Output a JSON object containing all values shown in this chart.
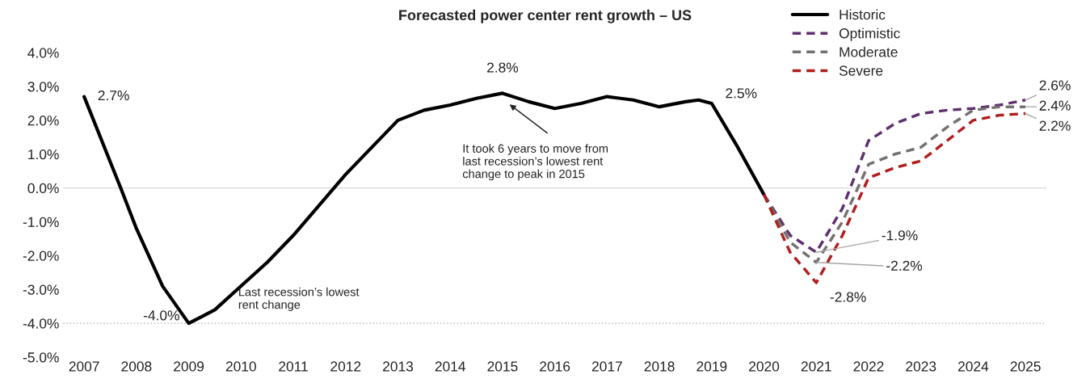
{
  "chart_data": {
    "type": "line",
    "title": "Forecasted power center rent growth – US",
    "xlim": [
      2006.6,
      2025.4
    ],
    "xticks": [
      2007,
      2008,
      2009,
      2010,
      2011,
      2012,
      2013,
      2014,
      2015,
      2016,
      2017,
      2018,
      2019,
      2020,
      2021,
      2022,
      2023,
      2024,
      2025
    ],
    "ylim": [
      -5,
      4
    ],
    "yticks": [
      {
        "value": -5,
        "label": "-5.0%"
      },
      {
        "value": -4,
        "label": "-4.0%"
      },
      {
        "value": -3,
        "label": "-3.0%"
      },
      {
        "value": -2,
        "label": "-2.0%"
      },
      {
        "value": -1,
        "label": "-1.0%"
      },
      {
        "value": 0,
        "label": "0.0%"
      },
      {
        "value": 1,
        "label": "1.0%"
      },
      {
        "value": 2,
        "label": "2.0%"
      },
      {
        "value": 3,
        "label": "3.0%"
      },
      {
        "value": 4,
        "label": "4.0%"
      }
    ],
    "legend": "top right",
    "grid": false,
    "series": [
      {
        "name": "Historic",
        "color": "#000000",
        "line_style": "solid",
        "x": [
          2007,
          2007.7,
          2008,
          2008.5,
          2009,
          2009.5,
          2010,
          2010.5,
          2011,
          2011.5,
          2012,
          2012.5,
          2013,
          2013.5,
          2014,
          2014.5,
          2015,
          2015.5,
          2016,
          2016.5,
          2017,
          2017.5,
          2018,
          2018.5,
          2018.75,
          2019,
          2019.5,
          2020
        ],
        "values": [
          2.7,
          0.0,
          -1.2,
          -2.9,
          -4.0,
          -3.6,
          -2.9,
          -2.2,
          -1.4,
          -0.5,
          0.4,
          1.2,
          2.0,
          2.3,
          2.45,
          2.65,
          2.8,
          2.55,
          2.35,
          2.5,
          2.7,
          2.6,
          2.4,
          2.55,
          2.6,
          2.5,
          1.2,
          -0.2
        ]
      },
      {
        "name": "Optimistic",
        "color": "#60306e",
        "line_style": "dashed",
        "x": [
          2020,
          2020.5,
          2021,
          2021.5,
          2022,
          2022.5,
          2023,
          2023.5,
          2024,
          2024.5,
          2025
        ],
        "values": [
          -0.2,
          -1.4,
          -1.9,
          -0.6,
          1.4,
          1.9,
          2.2,
          2.3,
          2.35,
          2.45,
          2.6
        ]
      },
      {
        "name": "Moderate",
        "color": "#767171",
        "line_style": "dashed",
        "x": [
          2020,
          2020.5,
          2021,
          2021.5,
          2022,
          2022.5,
          2023,
          2023.5,
          2024,
          2024.5,
          2025
        ],
        "values": [
          -0.2,
          -1.6,
          -2.2,
          -1.0,
          0.7,
          1.0,
          1.2,
          1.8,
          2.3,
          2.4,
          2.4
        ]
      },
      {
        "name": "Severe",
        "color": "#b01e1e",
        "line_style": "dashed",
        "x": [
          2020,
          2020.5,
          2021,
          2021.5,
          2022,
          2022.5,
          2023,
          2023.5,
          2024,
          2024.5,
          2025
        ],
        "values": [
          -0.2,
          -1.9,
          -2.8,
          -1.4,
          0.3,
          0.6,
          0.8,
          1.4,
          2.0,
          2.15,
          2.2
        ]
      }
    ],
    "ref_lines": [
      {
        "axis": "y",
        "value": 0,
        "color": "#d9d9d9",
        "line_style": "solid"
      },
      {
        "axis": "y",
        "value": -4.0,
        "color": "#a6a6a6",
        "line_style": "dotted"
      }
    ],
    "annotations": [
      {
        "text": "2.7%",
        "x": 2007,
        "y": 2.7
      },
      {
        "text": "-4.0%",
        "x": 2009,
        "y": -4.0
      },
      "Last recession’s lowest\nrent change",
      {
        "text": "2.8%",
        "x": 2015,
        "y": 2.8
      },
      "It took 6 years to move from\nlast recession’s lowest rent\nchange to peak in 2015",
      {
        "text": "2.5%",
        "x": 2019,
        "y": 2.5
      },
      {
        "text": "-1.9%",
        "x": 2021,
        "y": -1.9
      },
      {
        "text": "-2.2%",
        "x": 2021,
        "y": -2.2
      },
      {
        "text": "-2.8%",
        "x": 2021,
        "y": -2.8
      },
      {
        "text": "2.6%",
        "x": 2025,
        "y": 2.6
      },
      {
        "text": "2.4%",
        "x": 2025,
        "y": 2.4
      },
      {
        "text": "2.2%",
        "x": 2025,
        "y": 2.2
      }
    ]
  }
}
